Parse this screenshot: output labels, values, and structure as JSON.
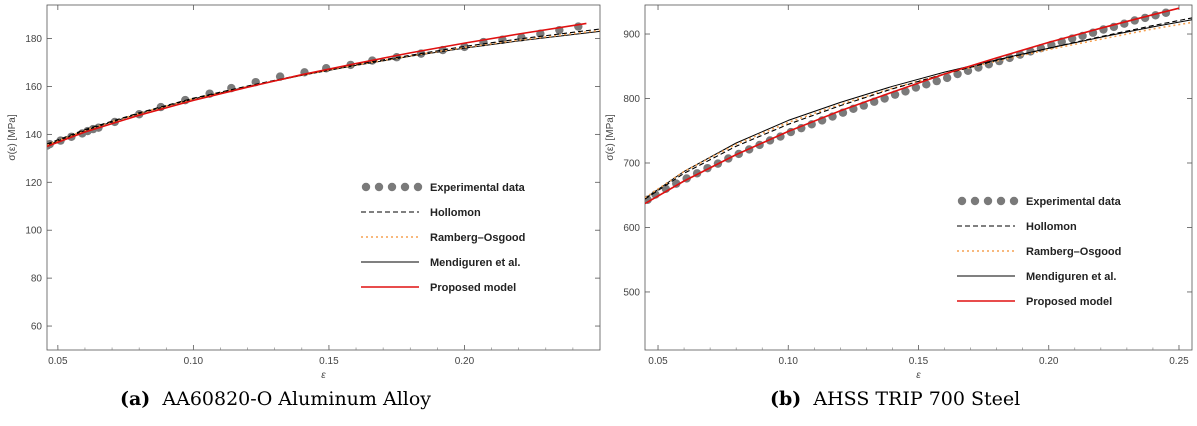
{
  "chart_data": [
    {
      "type": "line",
      "panel": "(a)",
      "caption": "AA60820-O Aluminum Alloy",
      "xlabel": "ε",
      "ylabel": "σ(ε)  [MPa]",
      "xlim": [
        0.046,
        0.25
      ],
      "ylim": [
        50,
        194
      ],
      "xticks": [
        "0.05",
        "0.10",
        "0.15",
        "0.20"
      ],
      "xtick_values": [
        0.05,
        0.1,
        0.15,
        0.2
      ],
      "yticks": [
        "60",
        "80",
        "100",
        "120",
        "140",
        "160",
        "180"
      ],
      "ytick_values": [
        60,
        80,
        100,
        120,
        140,
        160,
        180
      ],
      "grid": false,
      "legend_position": "bottom-right",
      "series": [
        {
          "name": "Experimental data",
          "style": "markers",
          "color": "#7a7a7a",
          "x": [
            0.046,
            0.047,
            0.051,
            0.055,
            0.059,
            0.061,
            0.063,
            0.065,
            0.071,
            0.08,
            0.088,
            0.097,
            0.106,
            0.114,
            0.123,
            0.132,
            0.141,
            0.149,
            0.158,
            0.166,
            0.175,
            0.184,
            0.192,
            0.2,
            0.207,
            0.214,
            0.221,
            0.228,
            0.235,
            0.242
          ],
          "y": [
            135.3,
            135.9,
            137.4,
            139.0,
            140.4,
            141.4,
            142.2,
            142.8,
            145.2,
            148.4,
            151.4,
            154.3,
            157.0,
            159.3,
            161.8,
            164.1,
            165.9,
            167.6,
            169.0,
            170.8,
            172.2,
            173.7,
            175.2,
            176.5,
            178.5,
            179.5,
            180.5,
            182.0,
            183.5,
            185.0
          ]
        },
        {
          "name": "Hollomon",
          "style": "dashed",
          "color": "#000000",
          "x": [
            0.046,
            0.06,
            0.08,
            0.1,
            0.12,
            0.14,
            0.16,
            0.18,
            0.2,
            0.22,
            0.25
          ],
          "y": [
            136.0,
            142.0,
            149.0,
            155.1,
            160.2,
            164.9,
            169.2,
            173.0,
            176.7,
            179.8,
            184.0
          ]
        },
        {
          "name": "Ramberg–Osgood",
          "style": "dotted",
          "color": "#f5a050",
          "x": [
            0.046,
            0.06,
            0.08,
            0.1,
            0.12,
            0.14,
            0.16,
            0.18,
            0.2,
            0.22,
            0.25
          ],
          "y": [
            135.6,
            141.7,
            148.8,
            154.9,
            160.0,
            164.7,
            169.0,
            172.8,
            176.3,
            179.3,
            183.4
          ]
        },
        {
          "name": "Mendiguren et al.",
          "style": "solid-thin",
          "color": "#000000",
          "x": [
            0.046,
            0.06,
            0.08,
            0.1,
            0.12,
            0.14,
            0.16,
            0.18,
            0.2,
            0.22,
            0.25
          ],
          "y": [
            135.5,
            141.6,
            148.7,
            154.8,
            159.9,
            164.6,
            168.8,
            172.6,
            176.0,
            179.0,
            183.0
          ]
        },
        {
          "name": "Proposed model",
          "style": "solid",
          "color": "#e01010",
          "x": [
            0.046,
            0.06,
            0.08,
            0.1,
            0.12,
            0.14,
            0.16,
            0.18,
            0.2,
            0.22,
            0.245
          ],
          "y": [
            135.0,
            141.0,
            148.0,
            154.2,
            159.7,
            164.9,
            169.6,
            174.0,
            178.1,
            181.9,
            186.3
          ]
        }
      ]
    },
    {
      "type": "line",
      "panel": "(b)",
      "caption": "AHSS TRIP 700 Steel",
      "xlabel": "ε",
      "ylabel": "σ(ε)  [MPa]",
      "xlim": [
        0.045,
        0.255
      ],
      "ylim": [
        410,
        945
      ],
      "xticks": [
        "0.05",
        "0.10",
        "0.15",
        "0.20",
        "0.25"
      ],
      "xtick_values": [
        0.05,
        0.1,
        0.15,
        0.2,
        0.25
      ],
      "yticks": [
        "500",
        "600",
        "700",
        "800",
        "900"
      ],
      "ytick_values": [
        500,
        600,
        700,
        800,
        900
      ],
      "grid": false,
      "legend_position": "bottom-right",
      "series": [
        {
          "name": "Experimental data",
          "style": "markers",
          "color": "#7a7a7a",
          "x": [
            0.046,
            0.049,
            0.053,
            0.057,
            0.061,
            0.065,
            0.069,
            0.073,
            0.077,
            0.081,
            0.085,
            0.089,
            0.093,
            0.097,
            0.101,
            0.105,
            0.109,
            0.113,
            0.117,
            0.121,
            0.125,
            0.129,
            0.133,
            0.137,
            0.141,
            0.145,
            0.149,
            0.153,
            0.157,
            0.161,
            0.165,
            0.169,
            0.173,
            0.177,
            0.181,
            0.185,
            0.189,
            0.193,
            0.197,
            0.201,
            0.205,
            0.209,
            0.213,
            0.217,
            0.221,
            0.225,
            0.229,
            0.233,
            0.237,
            0.241,
            0.245
          ],
          "y": [
            643,
            651,
            660,
            668,
            676,
            684,
            692,
            699,
            707,
            714,
            721,
            728,
            735,
            741,
            748,
            754,
            760,
            766,
            772,
            778,
            784,
            789,
            795,
            800,
            806,
            811,
            817,
            822,
            827,
            832,
            838,
            843,
            848,
            853,
            858,
            863,
            868,
            873,
            878,
            883,
            888,
            893,
            897,
            902,
            907,
            911,
            916,
            921,
            925,
            929,
            933
          ]
        },
        {
          "name": "Hollomon",
          "style": "dashed",
          "color": "#000000",
          "x": [
            0.045,
            0.06,
            0.08,
            0.1,
            0.12,
            0.14,
            0.16,
            0.18,
            0.2,
            0.22,
            0.24,
            0.255
          ],
          "y": [
            644,
            684,
            726,
            760,
            789,
            815,
            838,
            859,
            878,
            896,
            913,
            925
          ]
        },
        {
          "name": "Ramberg–Osgood",
          "style": "dotted",
          "color": "#f5a050",
          "x": [
            0.045,
            0.06,
            0.08,
            0.1,
            0.12,
            0.14,
            0.16,
            0.18,
            0.2,
            0.22,
            0.24,
            0.255
          ],
          "y": [
            646,
            687,
            729,
            763,
            791,
            816,
            838,
            858,
            876,
            892,
            908,
            918
          ]
        },
        {
          "name": "Mendiguren et al.",
          "style": "solid-thin",
          "color": "#000000",
          "x": [
            0.045,
            0.06,
            0.08,
            0.1,
            0.12,
            0.14,
            0.16,
            0.18,
            0.2,
            0.22,
            0.24,
            0.255
          ],
          "y": [
            645,
            687,
            731,
            766,
            794,
            819,
            841,
            860,
            878,
            895,
            911,
            922
          ]
        },
        {
          "name": "Proposed model",
          "style": "solid",
          "color": "#e01010",
          "x": [
            0.045,
            0.06,
            0.08,
            0.1,
            0.12,
            0.14,
            0.16,
            0.18,
            0.2,
            0.22,
            0.24,
            0.25
          ],
          "y": [
            637,
            672,
            713,
            749,
            781,
            810,
            838,
            863,
            887,
            909,
            930,
            940
          ]
        }
      ]
    }
  ]
}
